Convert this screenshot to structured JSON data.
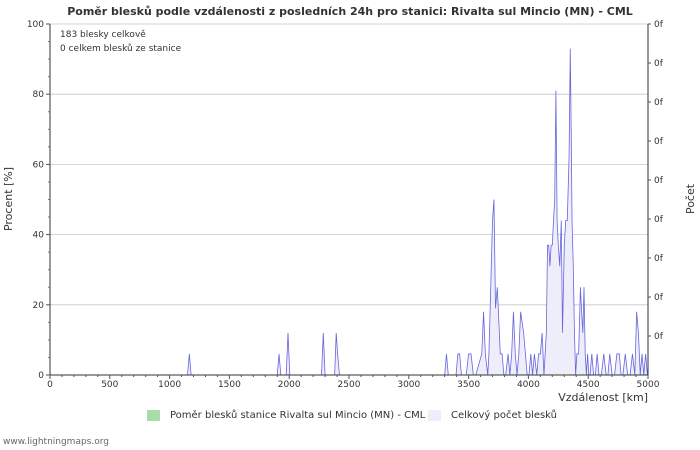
{
  "chart_data": {
    "type": "area",
    "title": "Poměr blesků podle vzdálenosti z posledních 24h pro stanici: Rivalta sul Mincio (MN) - CML",
    "xlabel": "Vzdálenost   [km]",
    "ylabel_left": "Procent   [%]",
    "ylabel_right": "Počet",
    "xlim": [
      0,
      5000
    ],
    "ylim": [
      0,
      100
    ],
    "x_ticks": [
      0,
      500,
      1000,
      1500,
      2000,
      2500,
      3000,
      3500,
      4000,
      4500,
      5000
    ],
    "y_ticks": [
      0,
      20,
      40,
      60,
      80,
      100
    ],
    "right_tick_labels": [
      "0f",
      "0f",
      "0f",
      "0f",
      "0f",
      "0f",
      "0f",
      "0f",
      "0f"
    ],
    "annotations": [
      "183 blesky celkově",
      "0 celkem blesků ze stanice"
    ],
    "series": [
      {
        "name": "Poměr blesků stanice Rivalta sul Mincio (MN) - CML",
        "color": "#a8dca8",
        "x": [
          0,
          5000
        ],
        "values": [
          0,
          0
        ]
      },
      {
        "name": "Celkový počet blesků",
        "color": "#6666dd",
        "fill": "#eeeefb",
        "x": [
          0,
          1150,
          1165,
          1180,
          1900,
          1915,
          1930,
          1975,
          1990,
          2005,
          2270,
          2285,
          2300,
          2380,
          2393,
          2405,
          2420,
          3300,
          3315,
          3330,
          3395,
          3410,
          3425,
          3440,
          3480,
          3500,
          3520,
          3540,
          3560,
          3610,
          3625,
          3640,
          3660,
          3670,
          3685,
          3700,
          3712,
          3725,
          3740,
          3765,
          3780,
          3795,
          3810,
          3830,
          3845,
          3860,
          3875,
          3890,
          3905,
          3920,
          3935,
          3960,
          3975,
          3990,
          4005,
          4020,
          4035,
          4050,
          4070,
          4085,
          4100,
          4115,
          4130,
          4140,
          4150,
          4160,
          4170,
          4180,
          4190,
          4200,
          4210,
          4220,
          4230,
          4240,
          4250,
          4262,
          4275,
          4285,
          4300,
          4312,
          4325,
          4340,
          4350,
          4358,
          4365,
          4375,
          4385,
          4395,
          4405,
          4420,
          4435,
          4445,
          4455,
          4465,
          4475,
          4485,
          4495,
          4505,
          4515,
          4530,
          4545,
          4560,
          4575,
          4590,
          4610,
          4630,
          4650,
          4665,
          4680,
          4700,
          4720,
          4740,
          4760,
          4775,
          4790,
          4810,
          4830,
          4850,
          4870,
          4890,
          4905,
          4920,
          4935,
          4950,
          4965,
          4980,
          4995,
          5000
        ],
        "values": [
          0,
          0,
          6,
          0,
          0,
          6,
          0,
          0,
          12,
          0,
          0,
          12,
          0,
          0,
          12,
          6,
          0,
          0,
          6,
          0,
          0,
          6,
          6,
          0,
          0,
          6,
          6,
          0,
          0,
          6,
          18,
          6,
          0,
          6,
          25,
          44,
          50,
          19,
          25,
          6,
          6,
          0,
          0,
          6,
          0,
          6,
          18,
          6,
          0,
          6,
          18,
          12,
          6,
          0,
          0,
          6,
          0,
          6,
          0,
          6,
          6,
          12,
          0,
          6,
          12,
          37,
          37,
          31,
          37,
          37,
          44,
          50,
          81,
          44,
          37,
          31,
          44,
          12,
          37,
          44,
          44,
          62,
          93,
          69,
          44,
          31,
          12,
          0,
          6,
          6,
          25,
          18,
          12,
          25,
          6,
          0,
          6,
          0,
          0,
          6,
          0,
          0,
          6,
          0,
          0,
          6,
          0,
          0,
          6,
          0,
          0,
          6,
          6,
          0,
          0,
          6,
          0,
          0,
          6,
          0,
          18,
          12,
          0,
          6,
          0,
          6,
          0,
          0
        ]
      }
    ]
  },
  "legend": {
    "ratio_label": "Poměr blesků stanice Rivalta sul Mincio (MN) - CML",
    "total_label": "Celkový počet blesků"
  },
  "footer": "www.lightningmaps.org"
}
